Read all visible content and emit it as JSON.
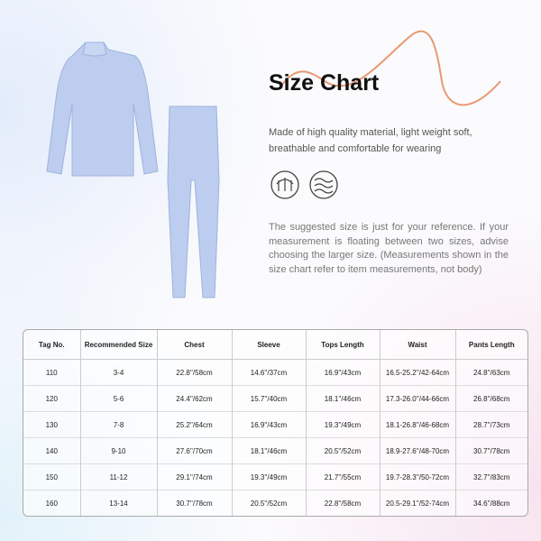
{
  "header": {
    "title": "Size Chart",
    "description": "Made of high quality material, light weight soft, breathable and comfortable for wearing",
    "note": "The suggested size is just for your reference. If your measurement is floating between two sizes, advise choosing the larger size. (Measurements shown in the size chart refer to item measurements, not body)"
  },
  "table": {
    "columns": [
      "Tag No.",
      "Recommended Size",
      "Chest",
      "Sleeve",
      "Tops Length",
      "Waist",
      "Pants Length"
    ],
    "rows": [
      [
        "110",
        "3-4",
        "22.8''/58cm",
        "14.6''/37cm",
        "16.9''/43cm",
        "16.5-25.2''/42-64cm",
        "24.8''/63cm"
      ],
      [
        "120",
        "5-6",
        "24.4''/62cm",
        "15.7''/40cm",
        "18.1''/46cm",
        "17.3-26.0''/44-66cm",
        "26.8''/68cm"
      ],
      [
        "130",
        "7-8",
        "25.2''/64cm",
        "16.9''/43cm",
        "19.3''/49cm",
        "18.1-26.8''/46-68cm",
        "28.7''/73cm"
      ],
      [
        "140",
        "9-10",
        "27.6''/70cm",
        "18.1''/46cm",
        "20.5''/52cm",
        "18.9-27.6''/48-70cm",
        "30.7''/78cm"
      ],
      [
        "150",
        "11-12",
        "29.1''/74cm",
        "19.3''/49cm",
        "21.7''/55cm",
        "19.7-28.3''/50-72cm",
        "32.7''/83cm"
      ],
      [
        "160",
        "13-14",
        "30.7''/78cm",
        "20.5''/52cm",
        "22.8''/58cm",
        "20.5-29.1''/52-74cm",
        "34.6''/88cm"
      ]
    ]
  }
}
